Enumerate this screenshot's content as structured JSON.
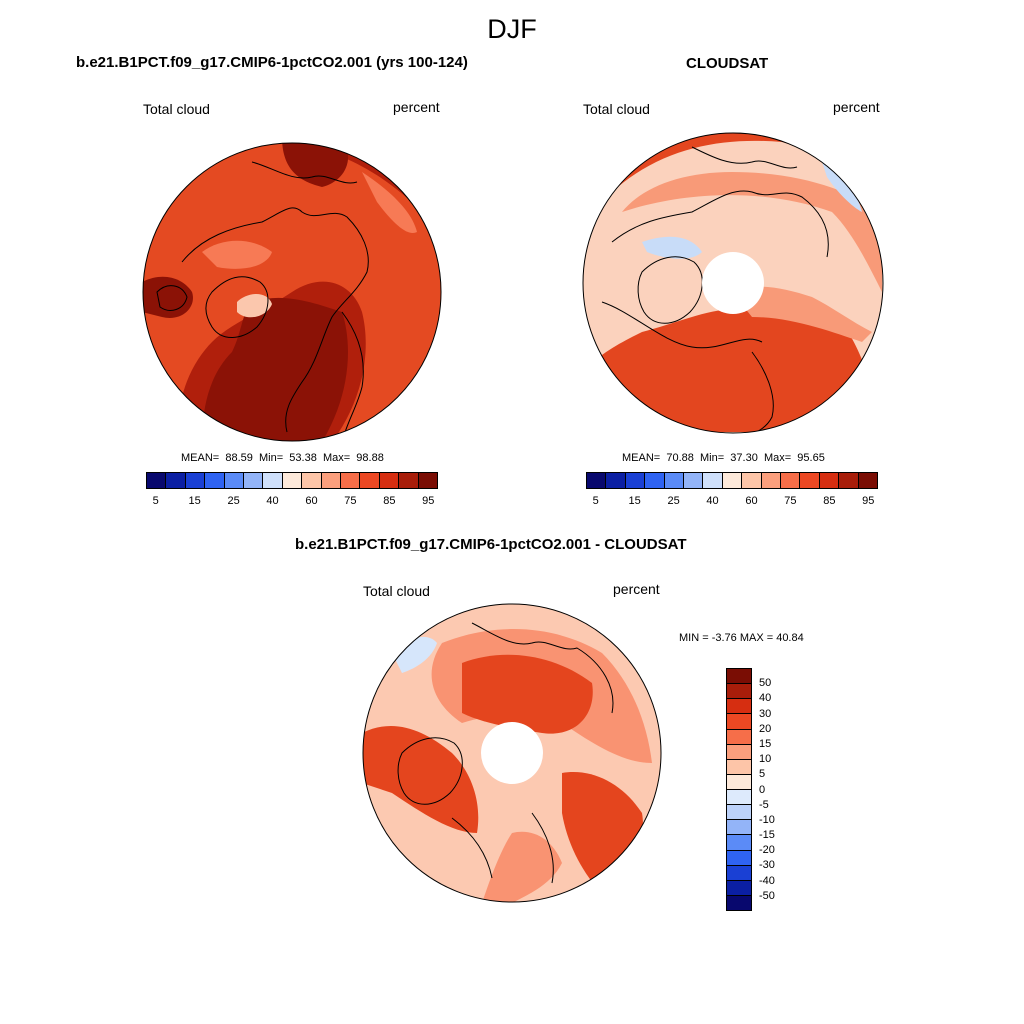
{
  "figure": {
    "season": "DJF",
    "variable": "Total cloud",
    "units": "percent"
  },
  "panels": [
    {
      "title": "b.e21.B1PCT.f09_g17.CMIP6-1pctCO2.001 (yrs 100-124)",
      "variable": "Total cloud",
      "units": "percent",
      "mean_label": "MEAN=",
      "mean": "88.59",
      "min_label": "Min=",
      "min": "53.38",
      "max_label": "Max=",
      "max": "98.88"
    },
    {
      "title": "CLOUDSAT",
      "variable": "Total cloud",
      "units": "percent",
      "mean_label": "MEAN=",
      "mean": "70.88",
      "min_label": "Min=",
      "min": "37.30",
      "max_label": "Max=",
      "max": "95.65"
    },
    {
      "title": "b.e21.B1PCT.f09_g17.CMIP6-1pctCO2.001 - CLOUDSAT",
      "variable": "Total cloud",
      "units": "percent",
      "minmax_text": "MIN =  -3.76 MAX =  40.84"
    }
  ],
  "colorbar_abs": {
    "colors": [
      "#08086e",
      "#0b1fa3",
      "#1a40d4",
      "#2f63f2",
      "#5b8bf7",
      "#93b4f8",
      "#cfe0fb",
      "#fde9da",
      "#fdc5a8",
      "#fb9f7d",
      "#f66e49",
      "#ec4823",
      "#d62e11",
      "#a81d0a",
      "#7a0d04"
    ],
    "tick_labels": [
      "5",
      "15",
      "25",
      "40",
      "60",
      "75",
      "85",
      "95"
    ]
  },
  "colorbar_diff": {
    "colors": [
      "#7a0d04",
      "#a81d0a",
      "#d62e11",
      "#ec4823",
      "#f66e49",
      "#fb9f7d",
      "#fdc5a8",
      "#fde9da",
      "#ddeafc",
      "#bcd2fa",
      "#93b4f8",
      "#5b8bf7",
      "#2f63f2",
      "#1a40d4",
      "#0b1fa3",
      "#08086e"
    ],
    "tick_labels": [
      "50",
      "40",
      "30",
      "20",
      "15",
      "10",
      "5",
      "0",
      "-5",
      "-10",
      "-15",
      "-20",
      "-30",
      "-40",
      "-50"
    ]
  },
  "map_colors": {
    "model": {
      "base": "#e44a22",
      "high": "#b01f0c",
      "peak": "#8b1206",
      "low": "#f77a55",
      "lowest": "#fbc7ad"
    },
    "obs": {
      "base": "#fbd2bd",
      "mid": "#f89a78",
      "high": "#e3461f",
      "cool": "#c8dcf8"
    },
    "diff": {
      "base": "#fcc9b1",
      "mid": "#f99372",
      "high": "#e4451e",
      "cool": "#d6e6fb"
    }
  }
}
